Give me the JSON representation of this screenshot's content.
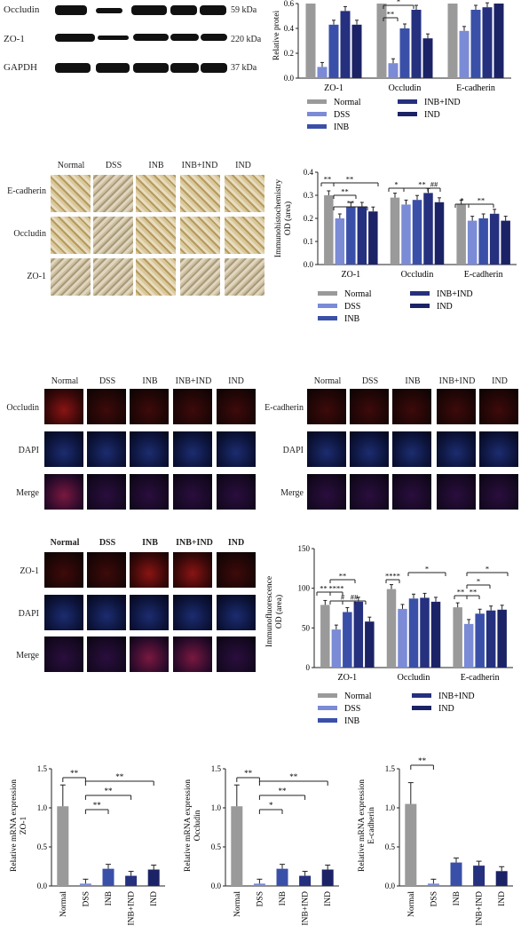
{
  "colors": {
    "normal": "#9a9a9a",
    "dss": "#7b8bd6",
    "inb": "#3a50a8",
    "inbind": "#25307e",
    "ind": "#1b2366"
  },
  "groups": [
    "Normal",
    "DSS",
    "INB",
    "INB+IND",
    "IND"
  ],
  "panelA": {
    "rows": [
      {
        "label": "Occludin",
        "kda": "59 kDa"
      },
      {
        "label": "ZO-1",
        "kda": "220 kDa"
      },
      {
        "label": "GAPDH",
        "kda": "37 kDa"
      }
    ]
  },
  "panelC": {
    "rows": [
      "E-cadherin",
      "Occludin",
      "ZO-1"
    ]
  },
  "panelE": {
    "rows": [
      "Occludin",
      "DAPI",
      "Merge"
    ]
  },
  "panelF": {
    "rows": [
      "E-cadherin",
      "DAPI",
      "Merge"
    ]
  },
  "panelG": {
    "rows": [
      "ZO-1",
      "DAPI",
      "Merge"
    ]
  },
  "chart_data": [
    {
      "type": "bar",
      "id": "B",
      "ylabel": "Relative protei",
      "categories": [
        "ZO-1",
        "Occludin",
        "E-cadherin"
      ],
      "yticks": [
        "0.6",
        "0.4",
        "0.2",
        "0.0"
      ],
      "ylim": [
        0,
        0.6
      ],
      "series": [
        {
          "name": "Normal",
          "values": [
            0.62,
            0.62,
            0.62
          ]
        },
        {
          "name": "DSS",
          "values": [
            0.09,
            0.12,
            0.38
          ]
        },
        {
          "name": "INB",
          "values": [
            0.43,
            0.4,
            0.55
          ]
        },
        {
          "name": "INB+IND",
          "values": [
            0.54,
            0.55,
            0.57
          ]
        },
        {
          "name": "IND",
          "values": [
            0.43,
            0.32,
            0.6
          ]
        }
      ],
      "sig": [
        "**",
        "*"
      ]
    },
    {
      "type": "bar",
      "id": "D",
      "ylabel": "Immunohistochemistry OD (area)",
      "categories": [
        "ZO-1",
        "Occludin",
        "E-cadherin"
      ],
      "yticks": [
        "0.4",
        "0.3",
        "0.2",
        "0.1",
        "0.0"
      ],
      "ylim": [
        0,
        0.4
      ],
      "series": [
        {
          "name": "Normal",
          "values": [
            0.3,
            0.29,
            0.26
          ]
        },
        {
          "name": "DSS",
          "values": [
            0.2,
            0.26,
            0.19
          ]
        },
        {
          "name": "INB",
          "values": [
            0.25,
            0.28,
            0.2
          ]
        },
        {
          "name": "INB+IND",
          "values": [
            0.25,
            0.31,
            0.22
          ]
        },
        {
          "name": "IND",
          "values": [
            0.23,
            0.27,
            0.19
          ]
        }
      ],
      "sig": [
        "**",
        "**",
        "**",
        "**",
        "*",
        "**",
        "##",
        "*",
        "**"
      ]
    },
    {
      "type": "bar",
      "id": "H",
      "ylabel": "Immunofluorescence OD (area)",
      "categories": [
        "ZO-1",
        "Occludin",
        "E-cadherin"
      ],
      "yticks": [
        "150",
        "100",
        "50",
        "0"
      ],
      "ylim": [
        0,
        150
      ],
      "series": [
        {
          "name": "Normal",
          "values": [
            79,
            99,
            76
          ]
        },
        {
          "name": "DSS",
          "values": [
            48,
            74,
            55
          ]
        },
        {
          "name": "INB",
          "values": [
            70,
            87,
            68
          ]
        },
        {
          "name": "INB+IND",
          "values": [
            83,
            88,
            72
          ]
        },
        {
          "name": "IND",
          "values": [
            58,
            83,
            73
          ]
        }
      ],
      "sig": [
        "**",
        "****",
        "#",
        "##",
        "**",
        "****",
        "*",
        "**",
        "**",
        "*",
        "*"
      ]
    },
    {
      "type": "bar",
      "id": "I1",
      "ylabel": "Relative mRNA expression ZO-1",
      "categories": [
        "Normal",
        "DSS",
        "INB",
        "INB+IND",
        "IND"
      ],
      "yticks": [
        "1.5",
        "1.0",
        "0.5",
        "0.0"
      ],
      "ylim": [
        0,
        1.5
      ],
      "values": [
        1.02,
        0.03,
        0.22,
        0.13,
        0.21
      ],
      "sig": [
        "**",
        "**",
        "**",
        "**"
      ]
    },
    {
      "type": "bar",
      "id": "I2",
      "ylabel": "Relative mRNA expression Occludin",
      "categories": [
        "Normal",
        "DSS",
        "INB",
        "INB+IND",
        "IND"
      ],
      "yticks": [
        "1.5",
        "1.0",
        "0.5",
        "0.0"
      ],
      "ylim": [
        0,
        1.5
      ],
      "values": [
        1.02,
        0.03,
        0.22,
        0.13,
        0.21
      ],
      "sig": [
        "**",
        "**",
        "**",
        "*"
      ]
    },
    {
      "type": "bar",
      "id": "I3",
      "ylabel": "Relative mRNA expression E-cadherin",
      "categories": [
        "Normal",
        "DSS",
        "INB",
        "INB+IND",
        "IND"
      ],
      "yticks": [
        "1.5",
        "1.0",
        "0.5",
        "0.0"
      ],
      "ylim": [
        0,
        1.5
      ],
      "values": [
        1.05,
        0.03,
        0.3,
        0.26,
        0.19
      ],
      "sig": [
        "**"
      ]
    }
  ]
}
